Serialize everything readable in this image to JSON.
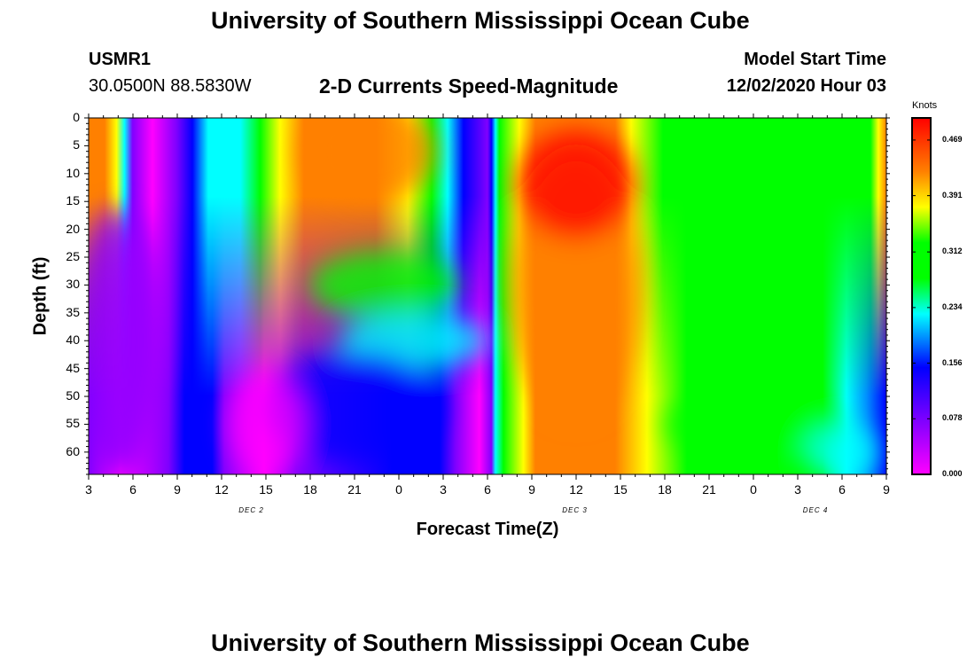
{
  "header": {
    "title": "University of Southern Mississippi Ocean Cube",
    "station": "USMR1",
    "location": "30.0500N 88.5830W",
    "model_start_label": "Model Start Time",
    "model_start_value": "12/02/2020 Hour 03",
    "footer_title": "University of Southern Mississippi Ocean Cube"
  },
  "chart_data": {
    "type": "heatmap",
    "title": "2-D Currents Speed-Magnitude",
    "xlabel": "Forecast Time(Z)",
    "ylabel": "Depth (ft)",
    "x_ticks": [
      "3",
      "6",
      "9",
      "12",
      "15",
      "18",
      "21",
      "0",
      "3",
      "6",
      "9",
      "12",
      "15",
      "18",
      "21",
      "0",
      "3",
      "6",
      "9"
    ],
    "day_labels": [
      {
        "label": "DEC 2",
        "hour_index": 3.67
      },
      {
        "label": "DEC 3",
        "hour_index": 10.97
      },
      {
        "label": "DEC 4",
        "hour_index": 16.4
      }
    ],
    "x_range_hours": [
      0,
      54
    ],
    "y_ticks": [
      "0",
      "5",
      "10",
      "15",
      "20",
      "25",
      "30",
      "35",
      "40",
      "45",
      "50",
      "55",
      "60"
    ],
    "y_range_ft": [
      0,
      64
    ],
    "colorbar": {
      "unit": "Knots",
      "tick_labels": [
        "0.469",
        "0.391",
        "0.312",
        "0.234",
        "0.156",
        "0.078",
        "0.000"
      ],
      "range": [
        0.0,
        0.5
      ]
    },
    "colors": {
      "magenta": "#ff00ff",
      "purple": "#8000ff",
      "blue": "#0000ff",
      "sky": "#0090ff",
      "cyan": "#00ffff",
      "green": "#00ff00",
      "yellow": "#ffff00",
      "orange": "#ff8000",
      "red": "#ff0000"
    }
  }
}
